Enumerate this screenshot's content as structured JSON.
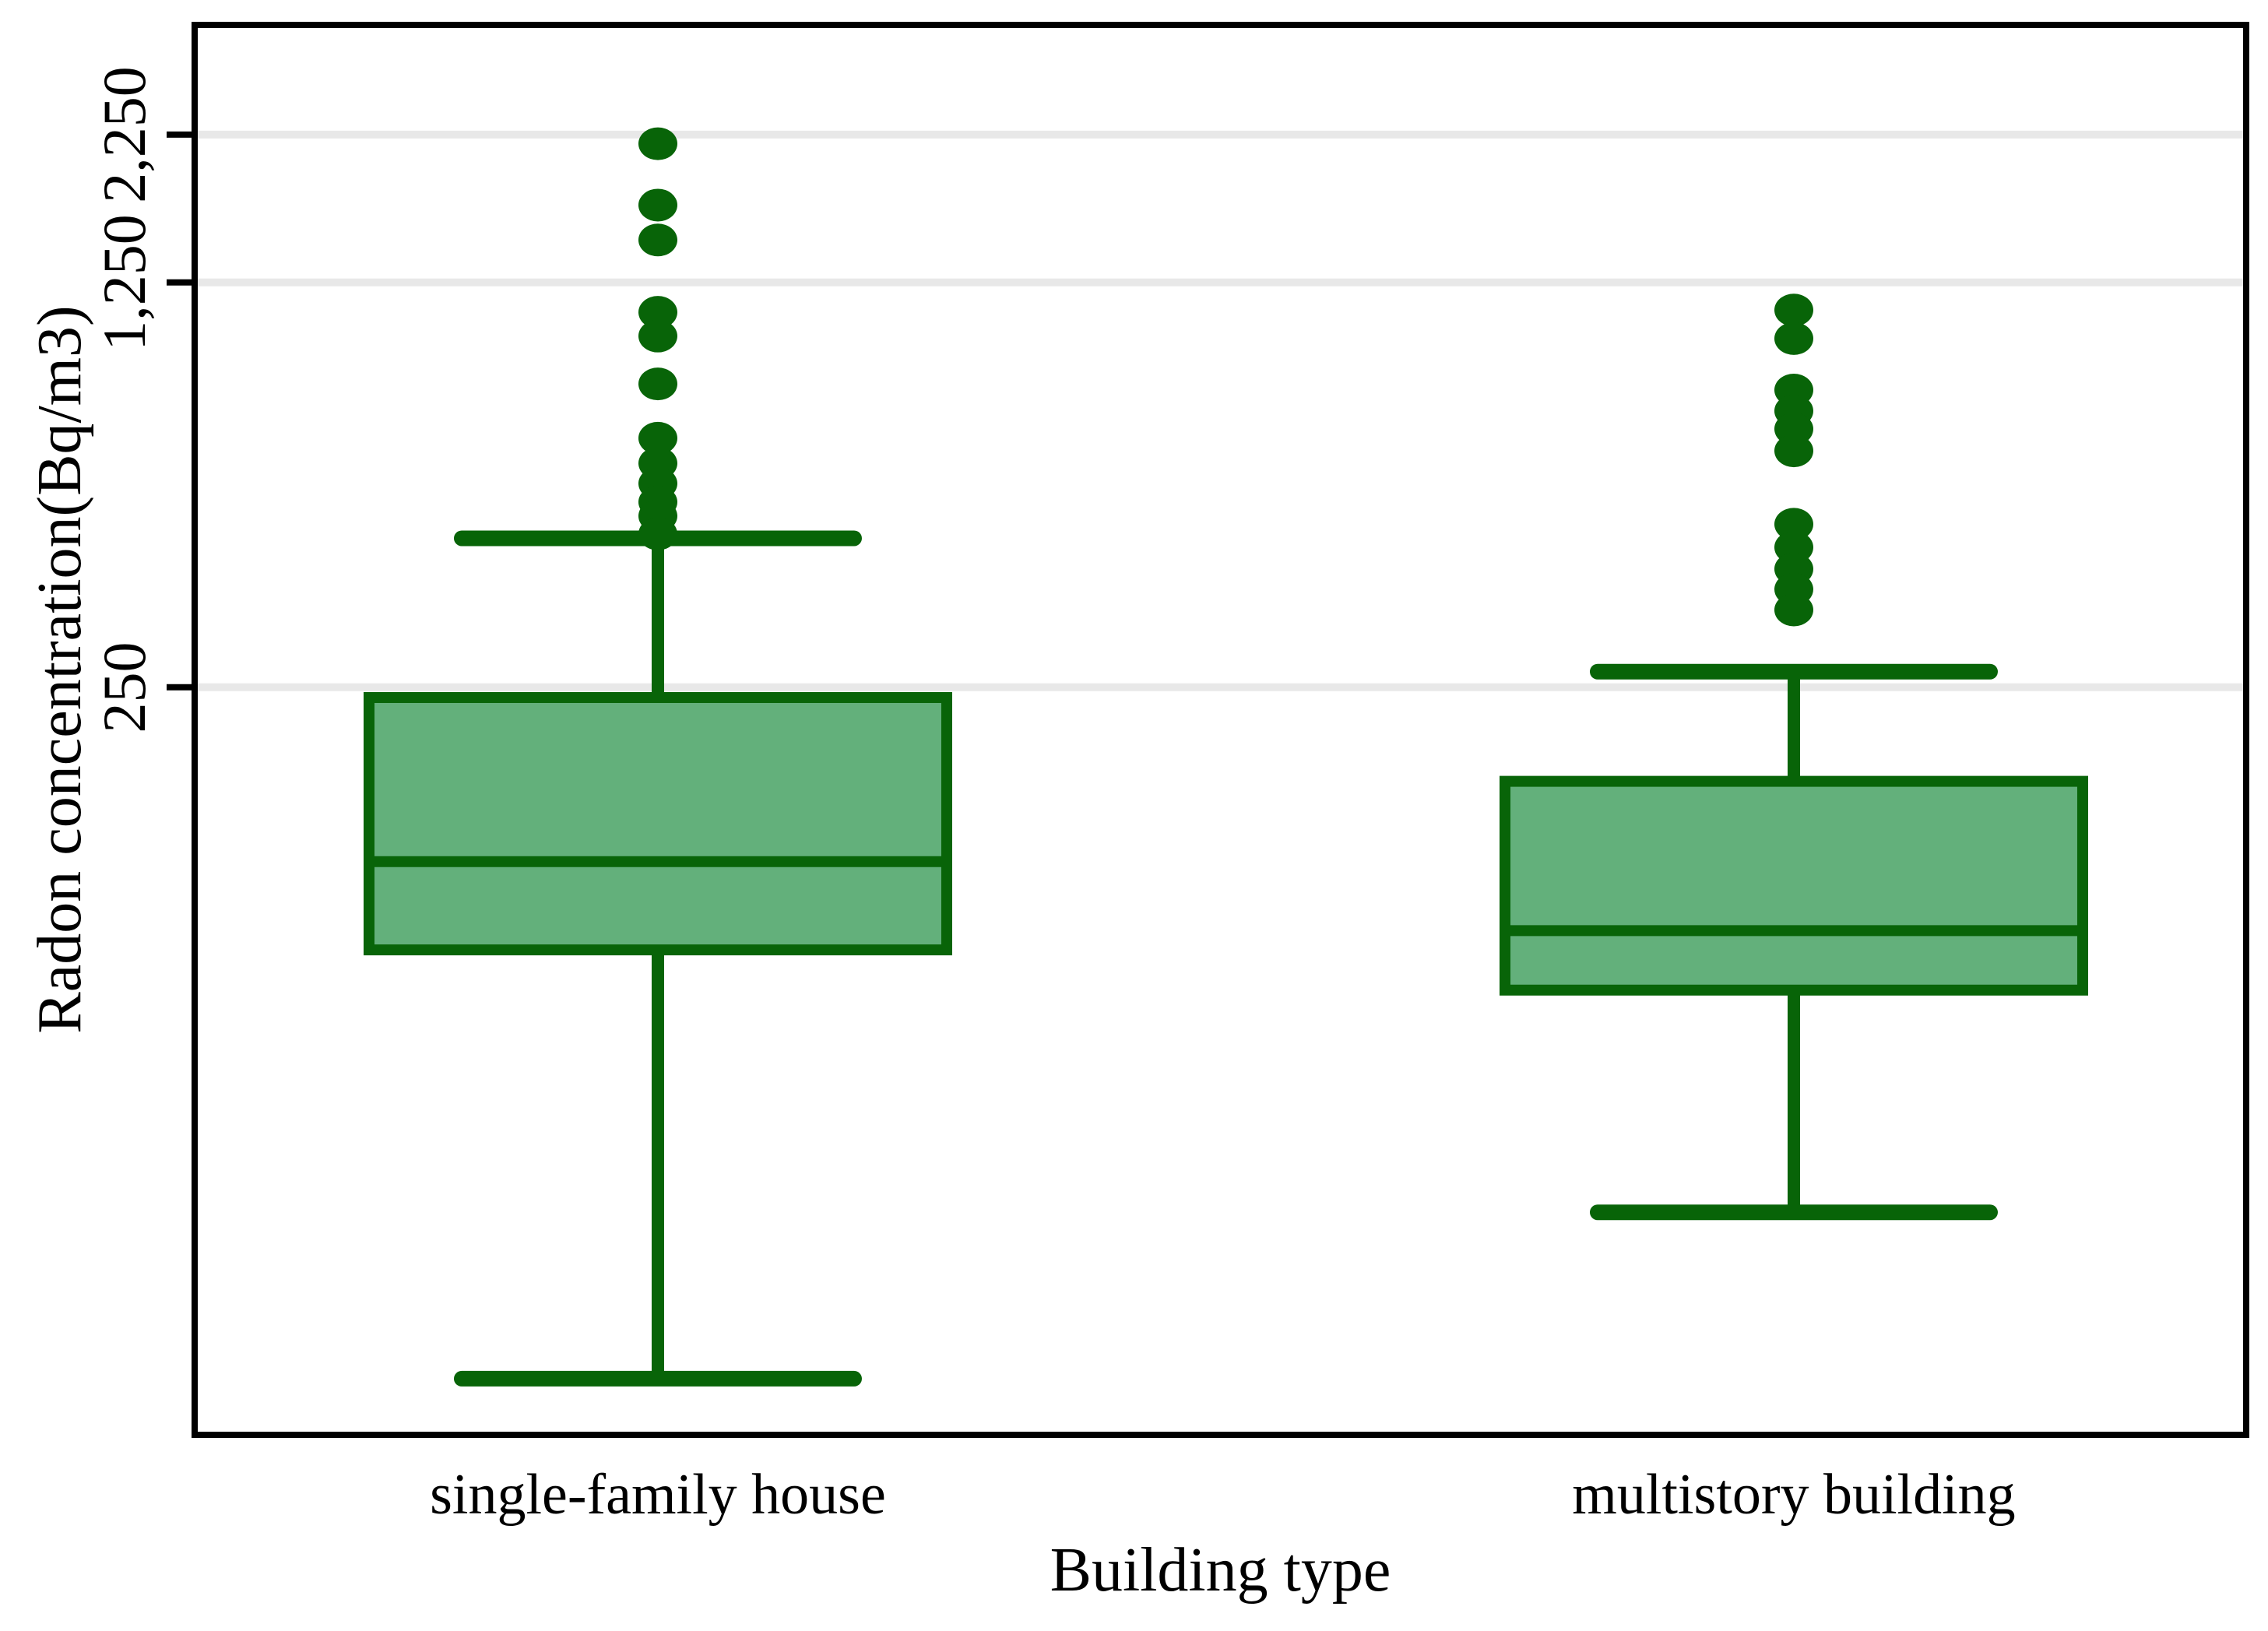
{
  "figure": {
    "background": "#ffffff"
  },
  "chart_data": {
    "type": "box",
    "title": "",
    "xlabel": "Building type",
    "ylabel": "Radon concentration(Bq/m3)",
    "yscale": "log",
    "ylim": [
      12.8,
      3480
    ],
    "grid": "horizontal",
    "legend": "none",
    "yticks": [
      {
        "value": 250,
        "label": "250"
      },
      {
        "value": 1250,
        "label": "1,250"
      },
      {
        "value": 2250,
        "label": "2,250"
      }
    ],
    "colors": {
      "line": "#086408",
      "box_fill": "#63b07b",
      "grid_line": "#e8e8e8",
      "frame": "#000000",
      "text": "#000000"
    },
    "groups": [
      {
        "label": "single-family house",
        "whisker_low": 16,
        "q1": 88,
        "median": 125,
        "q3": 240,
        "whisker_high": 452,
        "outliers": [
          2170,
          1700,
          1480,
          1110,
          1010,
          835,
          673,
          609,
          562,
          522,
          494,
          460
        ]
      },
      {
        "label": "multistory building",
        "whisker_low": 31,
        "q1": 75,
        "median": 95,
        "q3": 172,
        "whisker_high": 266,
        "outliers": [
          1120,
          1000,
          815,
          750,
          698,
          640,
          478,
          436,
          400,
          369,
          340
        ]
      }
    ]
  }
}
